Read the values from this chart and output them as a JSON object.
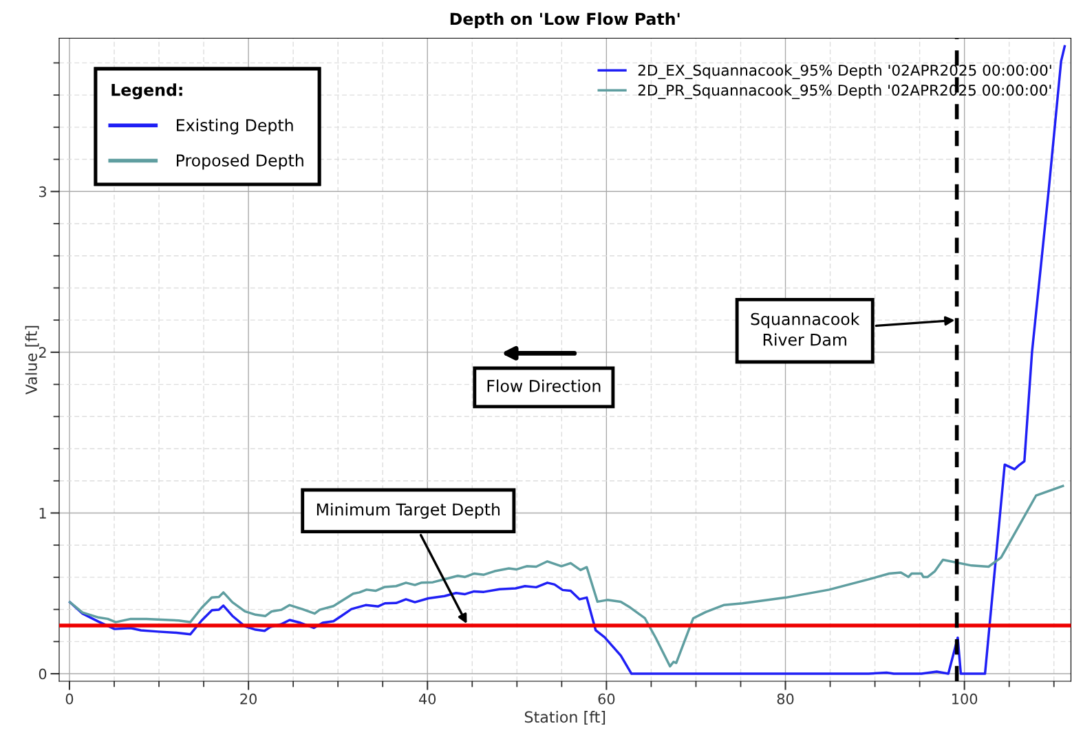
{
  "chart_data": {
    "type": "line",
    "title": "Depth on 'Low Flow Path'",
    "xlabel": "Station [ft]",
    "ylabel": "Value [ft]",
    "xlim": [
      -1.15,
      111.9
    ],
    "ylim": [
      -0.047,
      3.954
    ],
    "xticks": [
      0,
      20,
      40,
      60,
      80,
      100
    ],
    "yticks": [
      0,
      1,
      2,
      3
    ],
    "grid": true,
    "legend": "top right",
    "line_style": "solid",
    "marker": "none",
    "series": [
      {
        "name": "2D_EX_Squannacook_95% Depth '02APR2025 00:00:00'",
        "color": "#1f1ff5",
        "x": [
          0.05,
          1.46,
          3.25,
          5.04,
          6.84,
          7.99,
          9.9,
          11.96,
          13.5,
          14.77,
          15.92,
          16.7,
          17.2,
          18.2,
          19.6,
          20.8,
          21.8,
          22.45,
          23.7,
          24.6,
          25.8,
          27.3,
          28.3,
          29.5,
          30.4,
          31.5,
          33.1,
          34.5,
          35.25,
          36.5,
          37.6,
          38.6,
          40.1,
          41.9,
          43.2,
          44.2,
          45.2,
          46.3,
          48.06,
          49.85,
          50.9,
          52.15,
          53.4,
          54.2,
          55.1,
          56.0,
          57.0,
          57.8,
          58.8,
          59.8,
          61.6,
          62.8,
          73.65,
          89.3,
          91.3,
          92.1,
          95.2,
          96.9,
          98.2,
          99.25,
          99.6,
          102.3,
          104.5,
          105.6,
          106.1,
          106.7,
          107.55,
          109.4,
          110.8,
          111.2
        ],
        "values": [
          0.445,
          0.374,
          0.324,
          0.278,
          0.284,
          0.27,
          0.262,
          0.255,
          0.245,
          0.331,
          0.395,
          0.398,
          0.424,
          0.36,
          0.295,
          0.274,
          0.267,
          0.291,
          0.309,
          0.334,
          0.317,
          0.285,
          0.317,
          0.327,
          0.36,
          0.402,
          0.427,
          0.419,
          0.438,
          0.44,
          0.463,
          0.445,
          0.469,
          0.483,
          0.502,
          0.495,
          0.512,
          0.509,
          0.526,
          0.531,
          0.545,
          0.538,
          0.566,
          0.555,
          0.521,
          0.516,
          0.463,
          0.474,
          0.27,
          0.227,
          0.113,
          0.0,
          0.0,
          0.0,
          0.007,
          0.0,
          0.0,
          0.013,
          0.0,
          0.224,
          0.0,
          0.0,
          1.301,
          1.272,
          1.297,
          1.322,
          2.0,
          3.0,
          3.81,
          3.903
        ]
      },
      {
        "name": "2D_PR_Squannacook_95% Depth '02APR2025 00:00:00'",
        "color": "#5f9ea0",
        "x": [
          0.05,
          1.46,
          3.25,
          4.28,
          5.17,
          6.84,
          8.6,
          10.7,
          12.2,
          13.5,
          14.77,
          15.9,
          16.7,
          17.2,
          18.2,
          19.6,
          20.8,
          21.9,
          22.6,
          23.7,
          24.6,
          26.0,
          27.4,
          27.96,
          29.5,
          30.6,
          31.7,
          32.4,
          33.2,
          34.2,
          35.25,
          36.5,
          37.6,
          38.6,
          39.3,
          40.6,
          41.9,
          43.4,
          44.2,
          45.2,
          46.3,
          47.5,
          49.1,
          49.97,
          51.1,
          52.15,
          53.4,
          54.97,
          56.0,
          57.1,
          57.8,
          59.0,
          60.1,
          61.6,
          62.65,
          64.3,
          65.5,
          67.1,
          67.5,
          67.8,
          69.7,
          71.1,
          73.1,
          75.2,
          80.05,
          84.9,
          89.8,
          91.6,
          92.9,
          93.75,
          94.1,
          95.2,
          95.4,
          95.9,
          96.7,
          97.6,
          100.8,
          102.7,
          104.1,
          108.0,
          111.0
        ],
        "values": [
          0.445,
          0.381,
          0.35,
          0.341,
          0.321,
          0.341,
          0.341,
          0.335,
          0.331,
          0.321,
          0.41,
          0.474,
          0.478,
          0.506,
          0.445,
          0.388,
          0.367,
          0.359,
          0.388,
          0.398,
          0.427,
          0.402,
          0.374,
          0.398,
          0.421,
          0.459,
          0.498,
          0.506,
          0.523,
          0.516,
          0.54,
          0.545,
          0.566,
          0.552,
          0.566,
          0.569,
          0.588,
          0.609,
          0.602,
          0.623,
          0.616,
          0.638,
          0.655,
          0.649,
          0.669,
          0.666,
          0.699,
          0.669,
          0.688,
          0.645,
          0.663,
          0.448,
          0.459,
          0.448,
          0.412,
          0.345,
          0.224,
          0.046,
          0.074,
          0.067,
          0.345,
          0.384,
          0.427,
          0.438,
          0.474,
          0.523,
          0.595,
          0.623,
          0.63,
          0.602,
          0.623,
          0.623,
          0.602,
          0.602,
          0.638,
          0.709,
          0.673,
          0.666,
          0.723,
          1.108,
          1.168
        ]
      }
    ],
    "ref_lines": [
      {
        "axis": "y",
        "value": 0.3,
        "label": "Minimum Target Depth",
        "color": "#ee0000",
        "line_style": "solid"
      },
      {
        "axis": "x",
        "value": 99.15,
        "label": "Squannacook\nRiver Dam",
        "color": "#000000",
        "line_style": "dashed"
      }
    ],
    "annotations": [
      "Legend:",
      "Existing Depth",
      "Proposed Depth",
      "Flow Direction"
    ]
  }
}
